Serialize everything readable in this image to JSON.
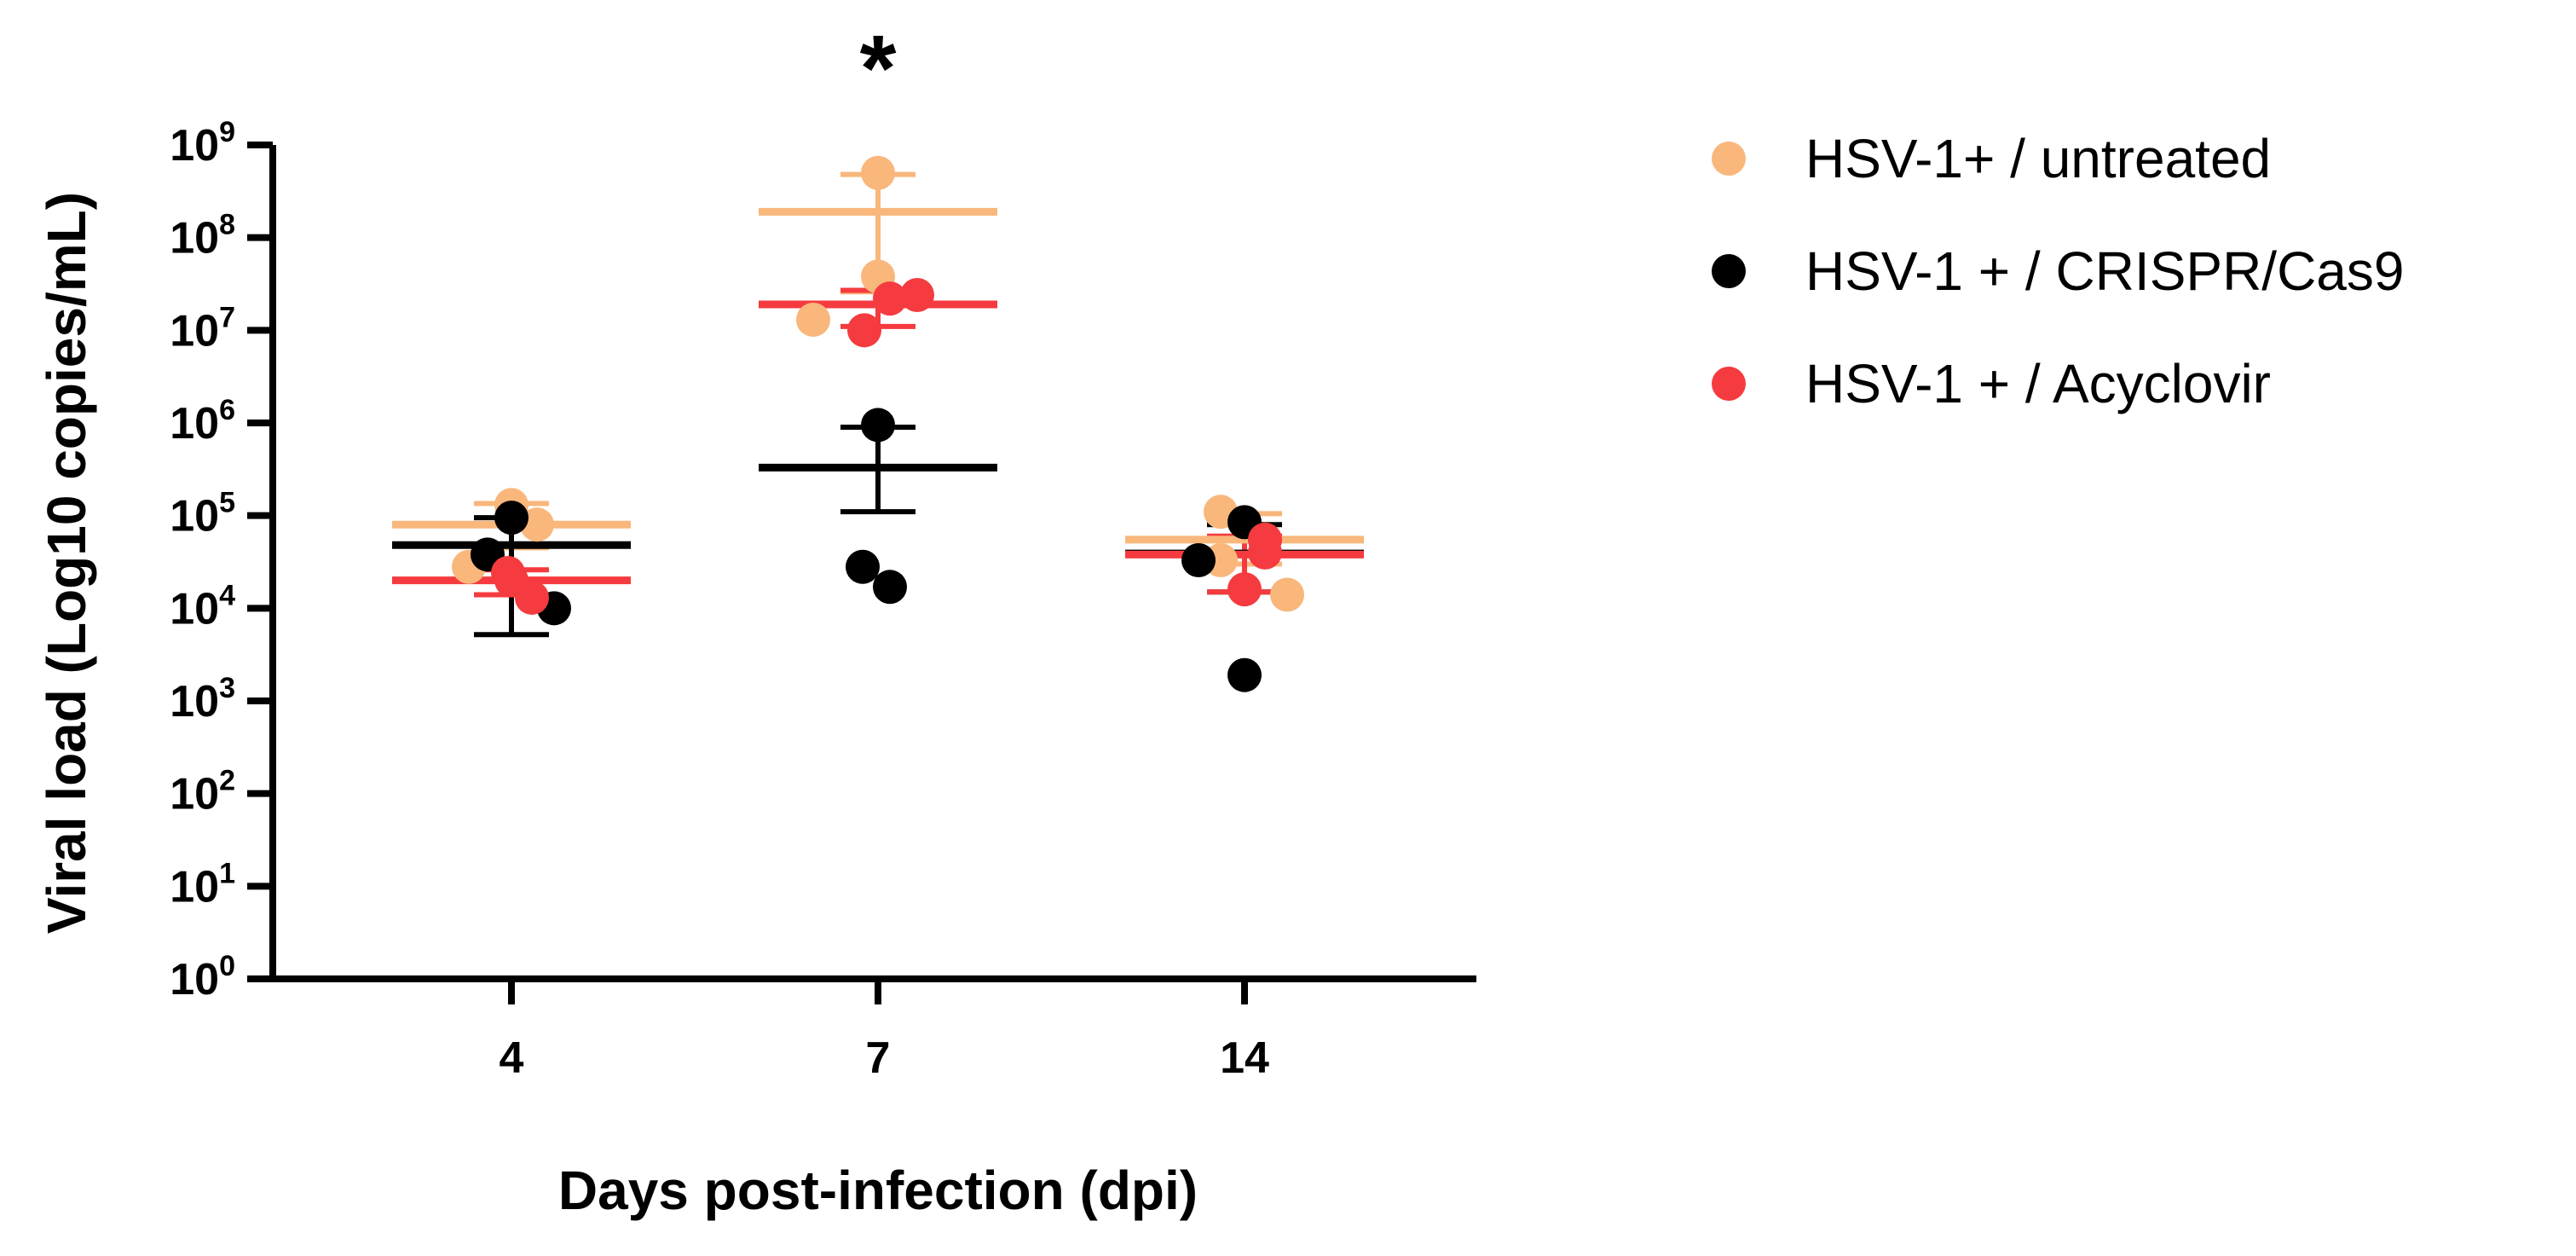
{
  "chart_data": {
    "type": "scatter",
    "title": "",
    "xlabel": "Days post-infection (dpi)",
    "ylabel": "Viral load (Log10 copies/mL)",
    "yscale": "log10",
    "ylim": [
      1,
      1000000000
    ],
    "categories": [
      "4",
      "7",
      "14"
    ],
    "y_ticks": [
      {
        "base": "10",
        "exp": "0"
      },
      {
        "base": "10",
        "exp": "1"
      },
      {
        "base": "10",
        "exp": "2"
      },
      {
        "base": "10",
        "exp": "3"
      },
      {
        "base": "10",
        "exp": "4"
      },
      {
        "base": "10",
        "exp": "5"
      },
      {
        "base": "10",
        "exp": "6"
      },
      {
        "base": "10",
        "exp": "7"
      },
      {
        "base": "10",
        "exp": "8"
      },
      {
        "base": "10",
        "exp": "9"
      }
    ],
    "annotations": [
      {
        "text": "*",
        "category": "7"
      }
    ],
    "legend_position": "right",
    "series": [
      {
        "name": "HSV-1+ / untreated",
        "color": "#F9B77C",
        "points": [
          {
            "category": "4",
            "offset": -0.25,
            "value": 28000
          },
          {
            "category": "4",
            "offset": 0.0,
            "value": 130000
          },
          {
            "category": "4",
            "offset": 0.15,
            "value": 80000
          },
          {
            "category": "7",
            "offset": -0.38,
            "value": 13000000
          },
          {
            "category": "7",
            "offset": 0.0,
            "value": 38000000
          },
          {
            "category": "7",
            "offset": 0.0,
            "value": 500000000
          },
          {
            "category": "14",
            "offset": -0.14,
            "value": 110000
          },
          {
            "category": "14",
            "offset": -0.14,
            "value": 33000
          },
          {
            "category": "14",
            "offset": 0.25,
            "value": 14000
          }
        ],
        "mean": [
          {
            "category": "4",
            "value": 80000
          },
          {
            "category": "7",
            "value": 190000000
          },
          {
            "category": "14",
            "value": 55000
          }
        ],
        "error": [
          {
            "category": "4",
            "low": 45000,
            "high": 135000
          },
          {
            "category": "7",
            "low": 26000000,
            "high": 480000000
          },
          {
            "category": "14",
            "low": 30000,
            "high": 105000
          }
        ]
      },
      {
        "name": "HSV-1 + / CRISPR/Cas9",
        "color": "#000000",
        "points": [
          {
            "category": "4",
            "offset": -0.14,
            "value": 38000
          },
          {
            "category": "4",
            "offset": 0.0,
            "value": 95000
          },
          {
            "category": "4",
            "offset": 0.25,
            "value": 10000
          },
          {
            "category": "7",
            "offset": -0.09,
            "value": 28000
          },
          {
            "category": "7",
            "offset": 0.0,
            "value": 950000
          },
          {
            "category": "7",
            "offset": 0.07,
            "value": 17000
          },
          {
            "category": "14",
            "offset": -0.27,
            "value": 33000
          },
          {
            "category": "14",
            "offset": 0.0,
            "value": 1900
          },
          {
            "category": "14",
            "offset": 0.0,
            "value": 85000
          }
        ],
        "mean": [
          {
            "category": "4",
            "value": 48000
          },
          {
            "category": "7",
            "value": 330000
          },
          {
            "category": "14",
            "value": 39000
          }
        ],
        "error": [
          {
            "category": "4",
            "low": 5200,
            "high": 95000
          },
          {
            "category": "7",
            "low": 110000,
            "high": 900000
          },
          {
            "category": "14",
            "low": 15000,
            "high": 80000
          }
        ]
      },
      {
        "name": "HSV-1 + / Acyclovir",
        "color": "#F53B3F",
        "points": [
          {
            "category": "4",
            "offset": -0.02,
            "value": 24000
          },
          {
            "category": "4",
            "offset": 0.0,
            "value": 20000
          },
          {
            "category": "4",
            "offset": 0.12,
            "value": 13000
          },
          {
            "category": "7",
            "offset": -0.08,
            "value": 10000000
          },
          {
            "category": "7",
            "offset": 0.07,
            "value": 22000000
          },
          {
            "category": "7",
            "offset": 0.23,
            "value": 24000000
          },
          {
            "category": "14",
            "offset": 0.0,
            "value": 16000
          },
          {
            "category": "14",
            "offset": 0.12,
            "value": 40000
          },
          {
            "category": "14",
            "offset": 0.12,
            "value": 55000
          }
        ],
        "mean": [
          {
            "category": "4",
            "value": 20000
          },
          {
            "category": "7",
            "value": 19000000
          },
          {
            "category": "14",
            "value": 38000
          }
        ],
        "error": [
          {
            "category": "4",
            "low": 14000,
            "high": 26000
          },
          {
            "category": "7",
            "low": 11000000,
            "high": 27000000
          },
          {
            "category": "14",
            "low": 15000,
            "high": 60000
          }
        ]
      }
    ]
  }
}
